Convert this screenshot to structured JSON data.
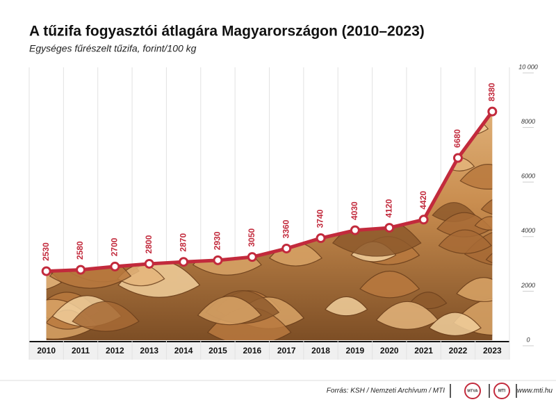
{
  "chart_data": {
    "type": "line",
    "title": "A tűzifa fogyasztói átlagára Magyarországon (2010–2023)",
    "subtitle": "Egységes fűrészelt tűzifa, forint/100 kg",
    "categories": [
      "2010",
      "2011",
      "2012",
      "2013",
      "2014",
      "2015",
      "2016",
      "2017",
      "2018",
      "2019",
      "2020",
      "2021",
      "2022",
      "2023"
    ],
    "values": [
      2530,
      2580,
      2700,
      2800,
      2870,
      2930,
      3050,
      3360,
      3740,
      4030,
      4120,
      4420,
      6680,
      8380
    ],
    "color": "#c22a3c",
    "ylim": [
      0,
      10000
    ],
    "yticks": [
      0,
      2000,
      4000,
      6000,
      8000,
      {
        "value": 10000,
        "label": "10 000"
      }
    ],
    "source": "Forrás: KSH / Nemzeti Archívum / MTI",
    "logos": [
      "MTVA",
      "MTI"
    ],
    "url": "www.mti.hu"
  }
}
